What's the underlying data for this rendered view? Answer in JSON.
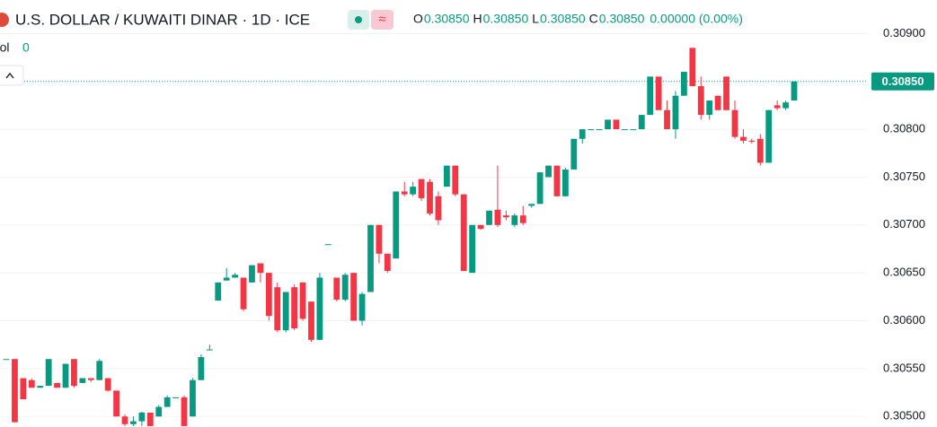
{
  "chart_data": {
    "type": "candlestick",
    "title": "U.S. DOLLAR / KUWAITI DINAR · 1D · ICE",
    "ohlc_legend": [
      {
        "key": "O",
        "value": "0.30850"
      },
      {
        "key": "H",
        "value": "0.30850"
      },
      {
        "key": "L",
        "value": "0.30850"
      },
      {
        "key": "C",
        "value": "0.30850"
      }
    ],
    "change": "0.00000 (0.00%)",
    "volume_label": "Vol",
    "volume": 0,
    "up_color": "#089981",
    "down_color": "#f23645",
    "ylim": [
      0.30489,
      0.30935
    ],
    "yticks": [
      {
        "value": 0.305,
        "label": "0.30500"
      },
      {
        "value": 0.3055,
        "label": "0.30550"
      },
      {
        "value": 0.306,
        "label": "0.30600"
      },
      {
        "value": 0.3065,
        "label": "0.30650"
      },
      {
        "value": 0.307,
        "label": "0.30700"
      },
      {
        "value": 0.3075,
        "label": "0.30750"
      },
      {
        "value": 0.308,
        "label": "0.30800"
      },
      {
        "value": 0.309,
        "label": "0.30900"
      }
    ],
    "last_price": {
      "value": 0.3085,
      "label": "0.30850"
    },
    "grid": true,
    "ohlc": [
      [
        0.3056,
        0.3056,
        0.3056,
        0.3056
      ],
      [
        0.3056,
        0.3056,
        0.30494,
        0.30494
      ],
      [
        0.3054,
        0.3054,
        0.30518,
        0.30518
      ],
      [
        0.30538,
        0.3054,
        0.3053,
        0.3053
      ],
      [
        0.3053,
        0.30532,
        0.3053,
        0.30532
      ],
      [
        0.30532,
        0.3056,
        0.30532,
        0.3056
      ],
      [
        0.30535,
        0.30535,
        0.3053,
        0.3053
      ],
      [
        0.3053,
        0.30555,
        0.3053,
        0.30555
      ],
      [
        0.3056,
        0.3056,
        0.3053,
        0.30532
      ],
      [
        0.30535,
        0.3054,
        0.30535,
        0.3054
      ],
      [
        0.3054,
        0.3054,
        0.30536,
        0.30538
      ],
      [
        0.30538,
        0.3056,
        0.30538,
        0.30558
      ],
      [
        0.3054,
        0.3054,
        0.30526,
        0.30527
      ],
      [
        0.30527,
        0.30527,
        0.305,
        0.305
      ],
      [
        0.305,
        0.30502,
        0.3049,
        0.30492
      ],
      [
        0.30492,
        0.305,
        0.3049,
        0.30495
      ],
      [
        0.30495,
        0.30505,
        0.3049,
        0.30504
      ],
      [
        0.30504,
        0.30504,
        0.3049,
        0.3049
      ],
      [
        0.305,
        0.30512,
        0.305,
        0.3051
      ],
      [
        0.3051,
        0.30522,
        0.3051,
        0.3052
      ],
      [
        0.3052,
        0.3052,
        0.3052,
        0.3052
      ],
      [
        0.3052,
        0.30522,
        0.3049,
        0.3049
      ],
      [
        0.305,
        0.3054,
        0.305,
        0.30538
      ],
      [
        0.30538,
        0.30565,
        0.30538,
        0.30562
      ],
      [
        0.3057,
        0.30575,
        0.3057,
        0.3057
      ],
      [
        0.30621,
        0.3064,
        0.30621,
        0.3064
      ],
      [
        0.30642,
        0.30655,
        0.30642,
        0.30645
      ],
      [
        0.30645,
        0.3065,
        0.30645,
        0.30648
      ],
      [
        0.30645,
        0.30645,
        0.3061,
        0.30612
      ],
      [
        0.3064,
        0.30658,
        0.3064,
        0.30658
      ],
      [
        0.3066,
        0.3066,
        0.3064,
        0.3065
      ],
      [
        0.3065,
        0.3065,
        0.306,
        0.30605
      ],
      [
        0.30635,
        0.3064,
        0.30588,
        0.3059
      ],
      [
        0.3059,
        0.3063,
        0.30588,
        0.3063
      ],
      [
        0.30635,
        0.30638,
        0.3059,
        0.30592
      ],
      [
        0.3064,
        0.3064,
        0.306,
        0.30602
      ],
      [
        0.3062,
        0.3062,
        0.30578,
        0.3058
      ],
      [
        0.3058,
        0.3065,
        0.3058,
        0.30645
      ],
      [
        0.3068,
        0.3068,
        0.3068,
        0.3068
      ],
      [
        0.30645,
        0.30645,
        0.3062,
        0.30622
      ],
      [
        0.30622,
        0.3065,
        0.3062,
        0.30648
      ],
      [
        0.3065,
        0.3065,
        0.306,
        0.306
      ],
      [
        0.306,
        0.3063,
        0.30595,
        0.30628
      ],
      [
        0.3063,
        0.307,
        0.3063,
        0.307
      ],
      [
        0.307,
        0.307,
        0.3066,
        0.3067
      ],
      [
        0.3067,
        0.3067,
        0.3065,
        0.30652
      ],
      [
        0.30665,
        0.30735,
        0.30665,
        0.30735
      ],
      [
        0.30735,
        0.30745,
        0.3073,
        0.30732
      ],
      [
        0.30732,
        0.30745,
        0.3073,
        0.3074
      ],
      [
        0.30748,
        0.30748,
        0.30725,
        0.30728
      ],
      [
        0.30745,
        0.30748,
        0.3071,
        0.30712
      ],
      [
        0.3073,
        0.30735,
        0.307,
        0.30705
      ],
      [
        0.3074,
        0.30762,
        0.3074,
        0.30762
      ],
      [
        0.30762,
        0.30762,
        0.3073,
        0.30732
      ],
      [
        0.30732,
        0.30732,
        0.30652,
        0.30652
      ],
      [
        0.3065,
        0.307,
        0.3065,
        0.307
      ],
      [
        0.307,
        0.307,
        0.30695,
        0.30696
      ],
      [
        0.307,
        0.30715,
        0.307,
        0.30715
      ],
      [
        0.30716,
        0.30762,
        0.30698,
        0.307
      ],
      [
        0.3071,
        0.30715,
        0.30705,
        0.30708
      ],
      [
        0.307,
        0.30712,
        0.30698,
        0.3071
      ],
      [
        0.3071,
        0.3072,
        0.307,
        0.30702
      ],
      [
        0.3072,
        0.30722,
        0.30718,
        0.30722
      ],
      [
        0.30722,
        0.30755,
        0.30722,
        0.30755
      ],
      [
        0.3075,
        0.30762,
        0.3075,
        0.30762
      ],
      [
        0.30762,
        0.30762,
        0.3073,
        0.3073
      ],
      [
        0.3073,
        0.3076,
        0.3073,
        0.30758
      ],
      [
        0.30758,
        0.3079,
        0.30758,
        0.3079
      ],
      [
        0.3079,
        0.308,
        0.30785,
        0.308
      ],
      [
        0.308,
        0.308,
        0.308,
        0.308
      ],
      [
        0.308,
        0.308,
        0.308,
        0.308
      ],
      [
        0.308,
        0.3081,
        0.308,
        0.3081
      ],
      [
        0.3081,
        0.3081,
        0.308,
        0.308
      ],
      [
        0.308,
        0.308,
        0.308,
        0.308
      ],
      [
        0.308,
        0.308,
        0.308,
        0.308
      ],
      [
        0.308,
        0.30815,
        0.308,
        0.30815
      ],
      [
        0.30815,
        0.30855,
        0.30815,
        0.30855
      ],
      [
        0.30855,
        0.30855,
        0.3082,
        0.3082
      ],
      [
        0.3082,
        0.3083,
        0.308,
        0.308
      ],
      [
        0.308,
        0.3084,
        0.3079,
        0.30835
      ],
      [
        0.30835,
        0.3086,
        0.30835,
        0.3086
      ],
      [
        0.30885,
        0.30885,
        0.30845,
        0.30845
      ],
      [
        0.30845,
        0.30855,
        0.3081,
        0.30815
      ],
      [
        0.30815,
        0.3083,
        0.3081,
        0.3083
      ],
      [
        0.30835,
        0.30835,
        0.3082,
        0.3082
      ],
      [
        0.30855,
        0.30855,
        0.3082,
        0.3082
      ],
      [
        0.3082,
        0.3083,
        0.3079,
        0.30792
      ],
      [
        0.30792,
        0.308,
        0.30785,
        0.30788
      ],
      [
        0.30788,
        0.3079,
        0.30785,
        0.30787
      ],
      [
        0.3079,
        0.30795,
        0.30762,
        0.30765
      ],
      [
        0.30765,
        0.3082,
        0.30765,
        0.3082
      ],
      [
        0.30825,
        0.3083,
        0.3082,
        0.30822
      ],
      [
        0.30822,
        0.3083,
        0.3082,
        0.30828
      ],
      [
        0.3083,
        0.3085,
        0.3083,
        0.3085
      ]
    ]
  }
}
